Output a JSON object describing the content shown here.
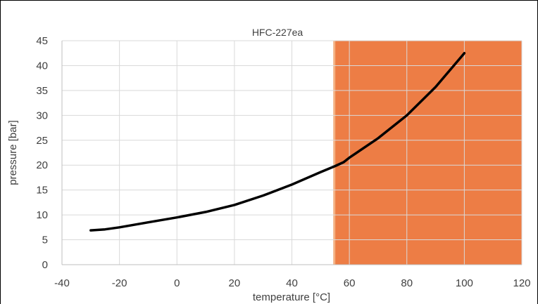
{
  "chart_data": {
    "type": "line",
    "title": "HFC-227ea",
    "xlabel": "temperature [°C]",
    "ylabel": "pressure [bar]",
    "xlim": [
      -40,
      120
    ],
    "ylim": [
      0,
      45
    ],
    "x_ticks": [
      -40,
      -20,
      0,
      20,
      40,
      60,
      80,
      100,
      120
    ],
    "y_ticks": [
      0,
      5,
      10,
      15,
      20,
      25,
      30,
      35,
      40,
      45
    ],
    "grid": true,
    "shaded_region": {
      "x_from": 55,
      "x_to": 120,
      "color": "#ED7D45"
    },
    "series": [
      {
        "color": "#000000",
        "x": [
          -30,
          -25,
          -20,
          -10,
          0,
          10,
          20,
          30,
          40,
          50,
          55,
          58,
          60,
          70,
          80,
          90,
          100
        ],
        "y": [
          6.9,
          7.1,
          7.5,
          8.5,
          9.5,
          10.6,
          12.0,
          13.9,
          16.1,
          18.6,
          19.8,
          20.6,
          21.5,
          25.4,
          30.0,
          35.7,
          42.5
        ]
      }
    ]
  }
}
